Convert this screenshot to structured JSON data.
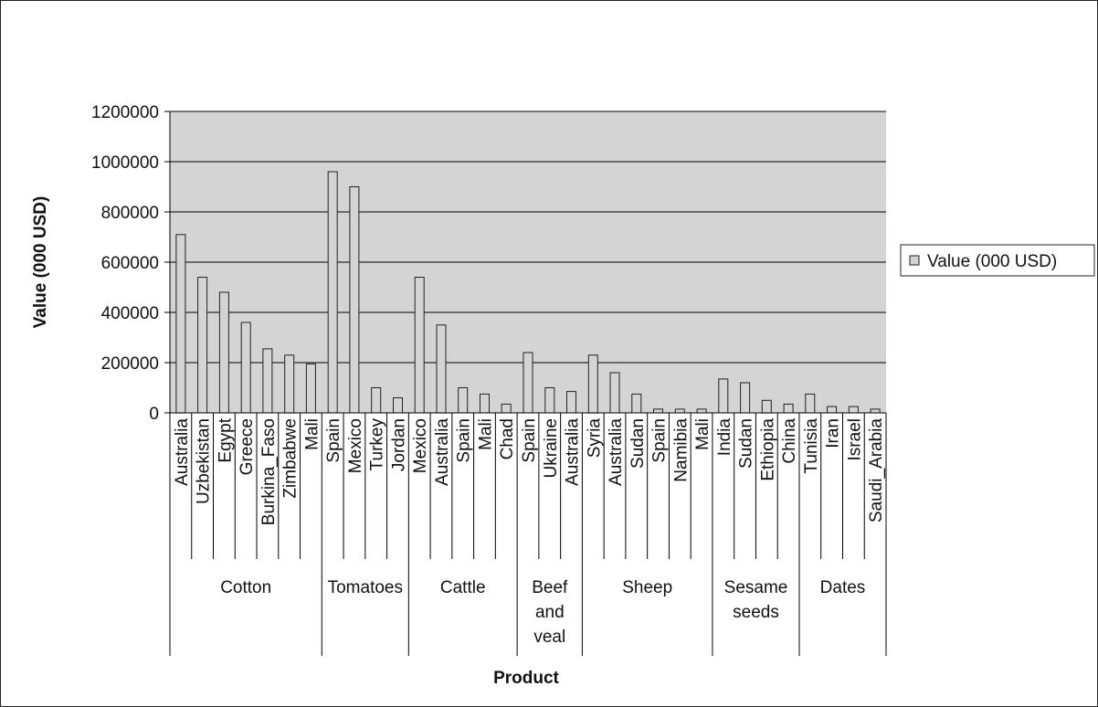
{
  "chart_data": {
    "type": "bar",
    "title": "",
    "xlabel": "Product",
    "ylabel": "Value (000 USD)",
    "ylim": [
      0,
      1200000
    ],
    "yticks": [
      0,
      200000,
      400000,
      600000,
      800000,
      1000000,
      1200000
    ],
    "ytick_labels": [
      "0",
      "200000",
      "400000",
      "600000",
      "800000",
      "1000000",
      "1200000"
    ],
    "grid": "horizontal",
    "legend_position": "right",
    "colors": {
      "plot_background": "#d4d4d4",
      "bar_fill": "#d4d4d4",
      "bar_stroke": "#222222"
    },
    "groups": [
      {
        "label": "Cotton",
        "size": 7
      },
      {
        "label": "Tomatoes",
        "size": 4
      },
      {
        "label": "Cattle",
        "size": 5
      },
      {
        "label": "Beef and veal",
        "size": 3
      },
      {
        "label": "Sheep",
        "size": 6
      },
      {
        "label": "Sesame seeds",
        "size": 4
      },
      {
        "label": "Dates",
        "size": 4
      }
    ],
    "categories": [
      "Australia",
      "Uzbekistan",
      "Egypt",
      "Greece",
      "Burkina_Faso",
      "Zimbabwe",
      "Mali",
      "Spain",
      "Mexico",
      "Turkey",
      "Jordan",
      "Mexico",
      "Australia",
      "Spain",
      "Mali",
      "Chad",
      "Spain",
      "Ukraine",
      "Australia",
      "Syria",
      "Australia",
      "Sudan",
      "Spain",
      "Namibia",
      "Mali",
      "India",
      "Sudan",
      "Ethiopia",
      "China",
      "Tunisia",
      "Iran",
      "Israel",
      "Saudi_Arabia"
    ],
    "series": [
      {
        "name": "Value (000 USD)",
        "values": [
          710000,
          540000,
          480000,
          360000,
          255000,
          230000,
          195000,
          960000,
          900000,
          100000,
          60000,
          540000,
          350000,
          100000,
          75000,
          35000,
          240000,
          100000,
          85000,
          230000,
          160000,
          75000,
          15000,
          15000,
          15000,
          135000,
          120000,
          50000,
          35000,
          75000,
          25000,
          25000,
          15000
        ]
      }
    ]
  }
}
